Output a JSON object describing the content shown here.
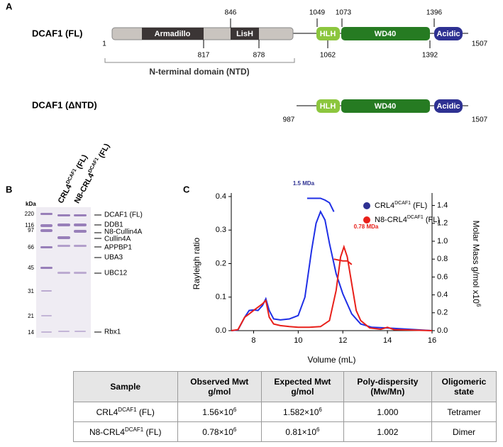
{
  "panel_letters": {
    "a": "A",
    "b": "B",
    "c": "C"
  },
  "panel_a": {
    "full": {
      "label": "DCAF1 (FL)",
      "domains": [
        "Armadillo",
        "LisH",
        "HLH",
        "WD40",
        "Acidic"
      ],
      "positions_above": [
        846,
        1049,
        1073,
        1396
      ],
      "positions_below": [
        1,
        817,
        878,
        1062,
        1392,
        1507
      ],
      "bracket_label": "N-terminal domain (NTD)"
    },
    "truncated": {
      "label": "DCAF1 (ΔNTD)",
      "domains": [
        "HLH",
        "WD40",
        "Acidic"
      ],
      "positions_below": [
        987,
        1507
      ]
    }
  },
  "panel_b": {
    "unit": "kDa",
    "markers": [
      "220",
      "116",
      "97",
      "66",
      "45",
      "31",
      "21",
      "14"
    ],
    "lanes": [
      {
        "base": "CRL4",
        "sup": "DCAF1",
        "rest": " (FL)"
      },
      {
        "base": "N8-CRL4",
        "sup": "DCAF1",
        "rest": " (FL)"
      }
    ],
    "bands": [
      "DCAF1 (FL)",
      "DDB1",
      "N8-Cullin4A",
      "Cullin4A",
      "APPBP1",
      "UBA3",
      "UBC12",
      "Rbx1"
    ]
  },
  "chart_data": {
    "type": "line",
    "x_label": "Volume (mL)",
    "y_label": "Rayleigh ratio",
    "y2_label": {
      "text": "Molar Mass g/mol x10",
      "sup": "6"
    },
    "xlim": [
      7,
      16
    ],
    "xticks": [
      8,
      10,
      12,
      14,
      16
    ],
    "ylim": [
      0,
      0.4
    ],
    "yticks": [
      {
        "value": 0,
        "label": "0.0"
      },
      0.1,
      0.2,
      0.3,
      0.4
    ],
    "y2lim": [
      0,
      1.5
    ],
    "y2ticks": [
      {
        "value": 0,
        "label": "0.0"
      },
      0.2,
      0.4,
      0.6,
      0.8,
      {
        "value": 1,
        "label": "1.0"
      },
      1.2,
      1.4
    ],
    "legend": "top-right",
    "annotations": [
      "1.5 MDa",
      "0.78 MDa"
    ],
    "series": [
      {
        "name": {
          "base": "CRL4",
          "sup": "DCAF1",
          "rest": " (FL)"
        },
        "color": "#1f2fe6",
        "marker_color": "#2e3192",
        "x": [
          7,
          7.3,
          7.6,
          7.8,
          8.0,
          8.2,
          8.4,
          8.55,
          8.7,
          8.9,
          9.2,
          9.6,
          10.0,
          10.3,
          10.6,
          10.8,
          11.0,
          11.2,
          11.4,
          11.7,
          12.0,
          12.4,
          12.8,
          13.3,
          14.0,
          15.0,
          16.0
        ],
        "values": [
          0,
          0.002,
          0.04,
          0.06,
          0.062,
          0.06,
          0.075,
          0.095,
          0.06,
          0.035,
          0.032,
          0.035,
          0.045,
          0.1,
          0.24,
          0.32,
          0.355,
          0.33,
          0.26,
          0.17,
          0.11,
          0.05,
          0.02,
          0.01,
          0.008,
          0.004,
          0
        ]
      },
      {
        "name": {
          "base": "N8-CRL4",
          "sup": "DCAF1",
          "rest": " (FL)"
        },
        "color": "#e8201a",
        "marker_color": "#e8201a",
        "x": [
          7,
          7.3,
          7.6,
          7.8,
          8.0,
          8.2,
          8.4,
          8.55,
          8.7,
          8.9,
          9.2,
          9.6,
          10.0,
          10.5,
          11.0,
          11.4,
          11.7,
          11.9,
          12.05,
          12.2,
          12.4,
          12.6,
          12.8,
          13.2,
          13.7,
          14.0,
          14.3,
          15.0,
          16.0
        ],
        "values": [
          0,
          0.003,
          0.04,
          0.05,
          0.06,
          0.07,
          0.08,
          0.09,
          0.04,
          0.02,
          0.015,
          0.012,
          0.01,
          0.01,
          0.012,
          0.03,
          0.12,
          0.22,
          0.25,
          0.22,
          0.14,
          0.06,
          0.03,
          0.008,
          0.004,
          0.01,
          0.003,
          0.002,
          0
        ]
      },
      {
        "axis": "y2",
        "color": "#1f2fe6",
        "x": [
          10.4,
          10.7,
          11.0,
          11.2,
          11.4,
          11.6
        ],
        "values": [
          1.48,
          1.48,
          1.48,
          1.46,
          1.43,
          1.33
        ]
      },
      {
        "axis": "y2",
        "color": "#e8201a",
        "x": [
          11.6,
          11.8,
          12.0,
          12.2,
          12.4
        ],
        "values": [
          0.8,
          0.79,
          0.78,
          0.78,
          0.74
        ]
      }
    ]
  },
  "table": {
    "header": [
      [
        "Sample"
      ],
      [
        "Observed Mwt",
        "g/mol"
      ],
      [
        "Expected Mwt",
        "g/mol"
      ],
      [
        "Poly-dispersity",
        "(Mw/Mn)"
      ],
      [
        "Oligomeric",
        "state"
      ]
    ],
    "rows": [
      [
        {
          "base": "CRL4",
          "sup": "DCAF1",
          "rest": " (FL)"
        },
        {
          "base": "1.56×10",
          "sup": "6"
        },
        {
          "base": "1.582×10",
          "sup": "6"
        },
        "1.000",
        "Tetramer"
      ],
      [
        {
          "base": "N8-CRL4",
          "sup": "DCAF1",
          "rest": " (FL)"
        },
        {
          "base": "0.78×10",
          "sup": "6"
        },
        {
          "base": "0.81×10",
          "sup": "6"
        },
        "1.002",
        "Dimer"
      ]
    ]
  }
}
